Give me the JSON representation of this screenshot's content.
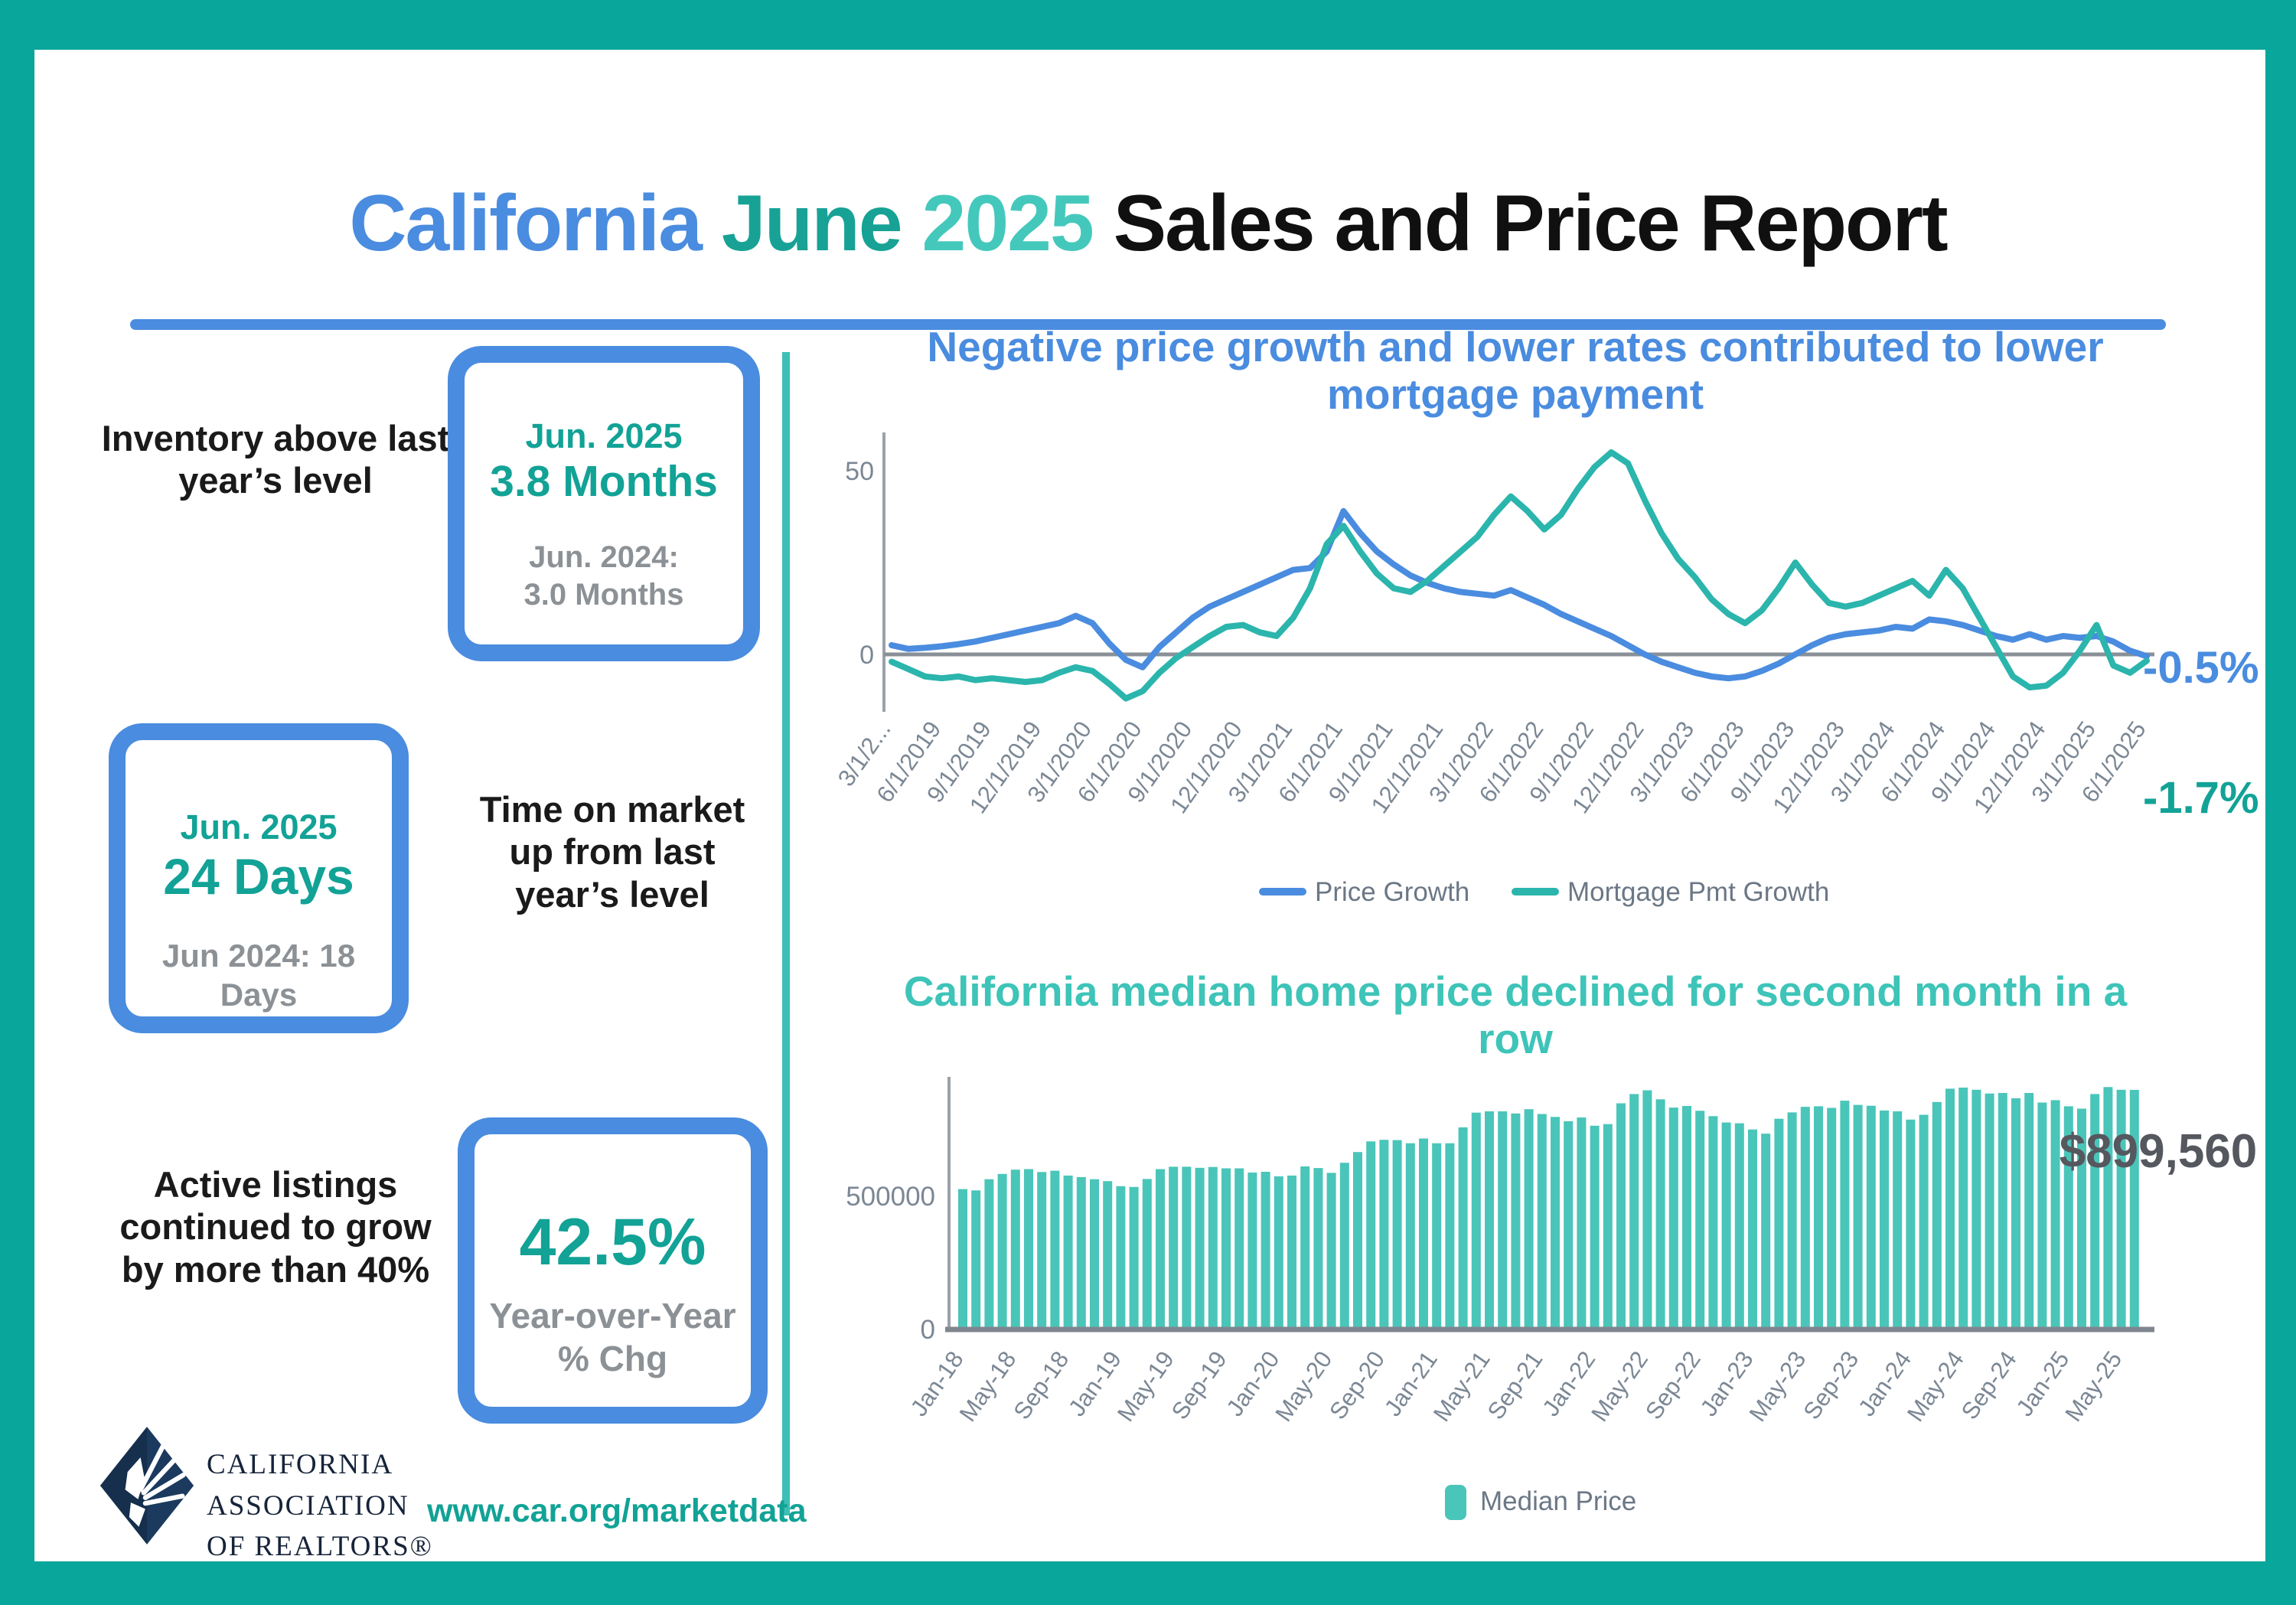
{
  "frame": {
    "border_color": "#09A69B",
    "content_bg": "#ffffff",
    "divider_color": "#3CBFB6",
    "accent_blue": "#4A8CDF",
    "accent_teal": "#12A296"
  },
  "title": {
    "parts": [
      {
        "text": "California ",
        "color": "#4A8CDF"
      },
      {
        "text": "June ",
        "color": "#17A295"
      },
      {
        "text": "2025 ",
        "color": "#45C8BC"
      },
      {
        "text": "Sales and Price Report",
        "color": "#101010"
      }
    ]
  },
  "left_panel": {
    "sections": [
      {
        "label": "Inventory above last year’s level",
        "box": {
          "period": "Jun. 2025",
          "value": "3.8 Months",
          "compare_line1": "Jun. 2024:",
          "compare_line2": "3.0 Months"
        }
      },
      {
        "label": "Time on market up from last year’s level",
        "box": {
          "period": "Jun. 2025",
          "value": "24 Days",
          "compare_line1": "Jun 2024: 18",
          "compare_line2": "Days"
        }
      },
      {
        "label": "Active listings continued to grow by more than 40%",
        "box": {
          "period": "",
          "value": "42.5%",
          "compare_line1": "Year-over-Year",
          "compare_line2": "% Chg"
        }
      }
    ]
  },
  "footer": {
    "logo_lines": [
      "CALIFORNIA",
      "ASSOCIATION",
      "OF REALTORS®"
    ],
    "url": "www.car.org/marketdata"
  },
  "chart_data": [
    {
      "type": "line",
      "title": "Negative price growth and lower rates contributed to lower mortgage payment",
      "title_color": "#4A8CDF",
      "x_interval": "monthly",
      "x_start": "3/1/2019",
      "x_end": "6/1/2025",
      "tick_labels": [
        "3/1/2...",
        "6/1/2019",
        "9/1/2019",
        "12/1/2019",
        "3/1/2020",
        "6/1/2020",
        "9/1/2020",
        "12/1/2020",
        "3/1/2021",
        "6/1/2021",
        "9/1/2021",
        "12/1/2021",
        "3/1/2022",
        "6/1/2022",
        "9/1/2022",
        "12/1/2022",
        "3/1/2023",
        "6/1/2023",
        "9/1/2023",
        "12/1/2023",
        "3/1/2024",
        "6/1/2024",
        "9/1/2024",
        "12/1/2024",
        "3/1/2025",
        "6/1/2025"
      ],
      "yticks": [
        {
          "value": 0,
          "label": "0"
        },
        {
          "value": 50,
          "label": "50"
        }
      ],
      "ylim": [
        -16,
        61
      ],
      "grid": false,
      "legend_position": "bottom",
      "series": [
        {
          "name": "Price Growth",
          "color": "#4A8CDF",
          "values": [
            2.5,
            1.5,
            1.8,
            2.2,
            2.8,
            3.5,
            4.5,
            5.5,
            6.5,
            7.5,
            8.5,
            10.5,
            8.5,
            3,
            -1.5,
            -3.5,
            2,
            6,
            10,
            13,
            15,
            17,
            19,
            21,
            23,
            23.5,
            28,
            39,
            33,
            28,
            24.5,
            21.5,
            19.5,
            18,
            17,
            16.5,
            16,
            17.5,
            15.5,
            13.5,
            11,
            9,
            7,
            5,
            2.5,
            0,
            -2,
            -3.5,
            -5,
            -6,
            -6.5,
            -6,
            -4.5,
            -2.5,
            0,
            2.5,
            4.5,
            5.5,
            6,
            6.5,
            7.5,
            7,
            9.5,
            9,
            8,
            6.5,
            5,
            4,
            5.5,
            4,
            5,
            4.5,
            5,
            3.5,
            1,
            -0.5
          ]
        },
        {
          "name": "Mortgage Pmt Growth",
          "color": "#2BB5AC",
          "values": [
            -2,
            -4,
            -6,
            -6.5,
            -6,
            -7,
            -6.5,
            -7,
            -7.5,
            -7,
            -5,
            -3.5,
            -4.5,
            -8,
            -12,
            -10,
            -5,
            -1,
            2,
            5,
            7.5,
            8,
            6,
            5,
            10,
            18,
            30,
            35,
            28,
            22,
            18,
            17,
            20,
            24,
            28,
            32,
            38,
            43,
            39,
            34,
            38,
            45,
            51,
            55,
            52,
            42,
            33,
            26,
            21,
            15,
            11,
            8.5,
            12,
            18,
            25,
            19,
            14,
            13,
            14,
            16,
            18,
            20,
            16,
            23,
            18,
            10,
            2,
            -6,
            -9,
            -8.5,
            -5,
            1,
            8,
            -3,
            -5,
            -1.7
          ]
        }
      ],
      "end_labels": [
        {
          "text": "-0.5%",
          "color": "#4A8CDF"
        },
        {
          "text": "-1.7%",
          "color": "#12A296"
        }
      ]
    },
    {
      "type": "bar",
      "title": "California median home price declined for second month in a row",
      "title_color": "#3EC4B8",
      "bar_color": "#4AC5B9",
      "legend": "Median Price",
      "x_interval": "monthly",
      "x_start": "Jan-18",
      "x_end": "Jun-25",
      "tick_every": 4,
      "tick_labels": [
        "Jan-18",
        "May-18",
        "Sep-18",
        "Jan-19",
        "May-19",
        "Sep-19",
        "Jan-20",
        "May-20",
        "Sep-20",
        "Jan-21",
        "May-21",
        "Sep-21",
        "Jan-22",
        "May-22",
        "Sep-22",
        "Jan-23",
        "May-23",
        "Sep-23",
        "Jan-24",
        "May-24",
        "Sep-24",
        "Jan-25",
        "May-25"
      ],
      "yticks": [
        {
          "value": 0,
          "label": "0"
        },
        {
          "value": 500000,
          "label": "500000"
        }
      ],
      "annotation": {
        "text": "$899,560",
        "value": 899560
      },
      "values": [
        527000,
        522000,
        564000,
        584000,
        600000,
        602000,
        591000,
        596000,
        578000,
        572000,
        564000,
        557000,
        538000,
        535000,
        565000,
        602000,
        611000,
        611000,
        607000,
        610000,
        605000,
        605000,
        589000,
        592000,
        575000,
        578000,
        612000,
        606000,
        588000,
        626000,
        666000,
        706000,
        712000,
        711000,
        699000,
        717000,
        699000,
        699000,
        759000,
        814000,
        819000,
        819000,
        811000,
        827000,
        809000,
        798000,
        782000,
        796000,
        765000,
        771000,
        849000,
        884000,
        898000,
        864000,
        833000,
        839000,
        821000,
        801000,
        777000,
        774000,
        751000,
        735000,
        791000,
        815000,
        836000,
        838000,
        832000,
        859000,
        843000,
        840000,
        822000,
        819000,
        788000,
        806000,
        854000,
        904000,
        908000,
        900000,
        886000,
        888000,
        868000,
        888000,
        852000,
        861000,
        838000,
        829000,
        884000,
        910000,
        900000,
        899560
      ]
    }
  ]
}
